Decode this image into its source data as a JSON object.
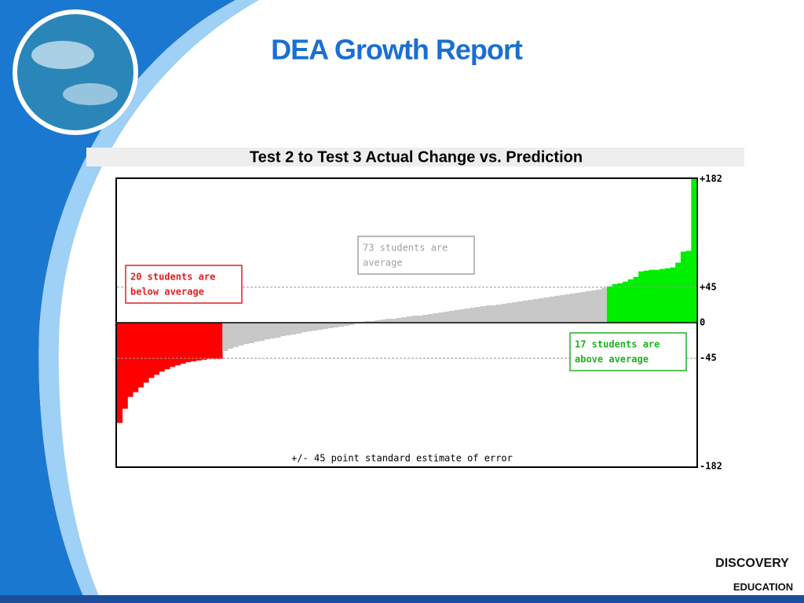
{
  "header": {
    "title": "DEA Growth Report"
  },
  "chart_data": {
    "type": "bar",
    "title": "Test 2 to Test 3 Actual Change vs. Prediction",
    "series": [
      {
        "color": "#ff0000",
        "values": [
          -127,
          -109,
          -94,
          -88,
          -82,
          -76,
          -70,
          -66,
          -62,
          -59,
          -56,
          -54,
          -52,
          -50,
          -49,
          -48,
          -47,
          -46,
          -46,
          -46
        ]
      },
      {
        "color": "#c8c8c8",
        "values": [
          -36,
          -33,
          -31,
          -29,
          -27,
          -26,
          -24,
          -23,
          -21,
          -20,
          -19,
          -17,
          -16,
          -15,
          -14,
          -12,
          -11,
          -10,
          -9,
          -8,
          -7,
          -6,
          -5,
          -4,
          -3,
          -1,
          1,
          2,
          2,
          3,
          4,
          5,
          5,
          6,
          7,
          8,
          9,
          9,
          10,
          11,
          12,
          13,
          14,
          15,
          16,
          17,
          18,
          19,
          20,
          21,
          22,
          22,
          23,
          24,
          25,
          26,
          27,
          28,
          29,
          30,
          31,
          32,
          33,
          34,
          35,
          36,
          37,
          38,
          39,
          40,
          41,
          42,
          44
        ]
      },
      {
        "color": "#00ee00",
        "values": [
          46,
          49,
          50,
          52,
          55,
          58,
          65,
          66,
          67,
          67,
          68,
          69,
          70,
          76,
          90,
          91,
          182
        ]
      }
    ],
    "ylim": [
      -182,
      182
    ],
    "yticks": [
      {
        "value": 182,
        "label": "+182"
      },
      {
        "value": 45,
        "label": "+45"
      },
      0,
      -45,
      -182
    ],
    "dashed_ticks": [
      1,
      3
    ],
    "annotations": [
      {
        "lines": [
          "20 students are",
          "below average"
        ],
        "color": "#e02020"
      },
      {
        "lines": [
          "73 students are",
          "average"
        ],
        "color": "#a0a0a0"
      },
      {
        "lines": [
          "17 students are",
          "above average"
        ],
        "color": "#20b020"
      }
    ],
    "note": "+/- 45 point standard estimate of error"
  },
  "logo": {
    "line1": "DISCOVERY",
    "line2": "EDUCATION"
  }
}
